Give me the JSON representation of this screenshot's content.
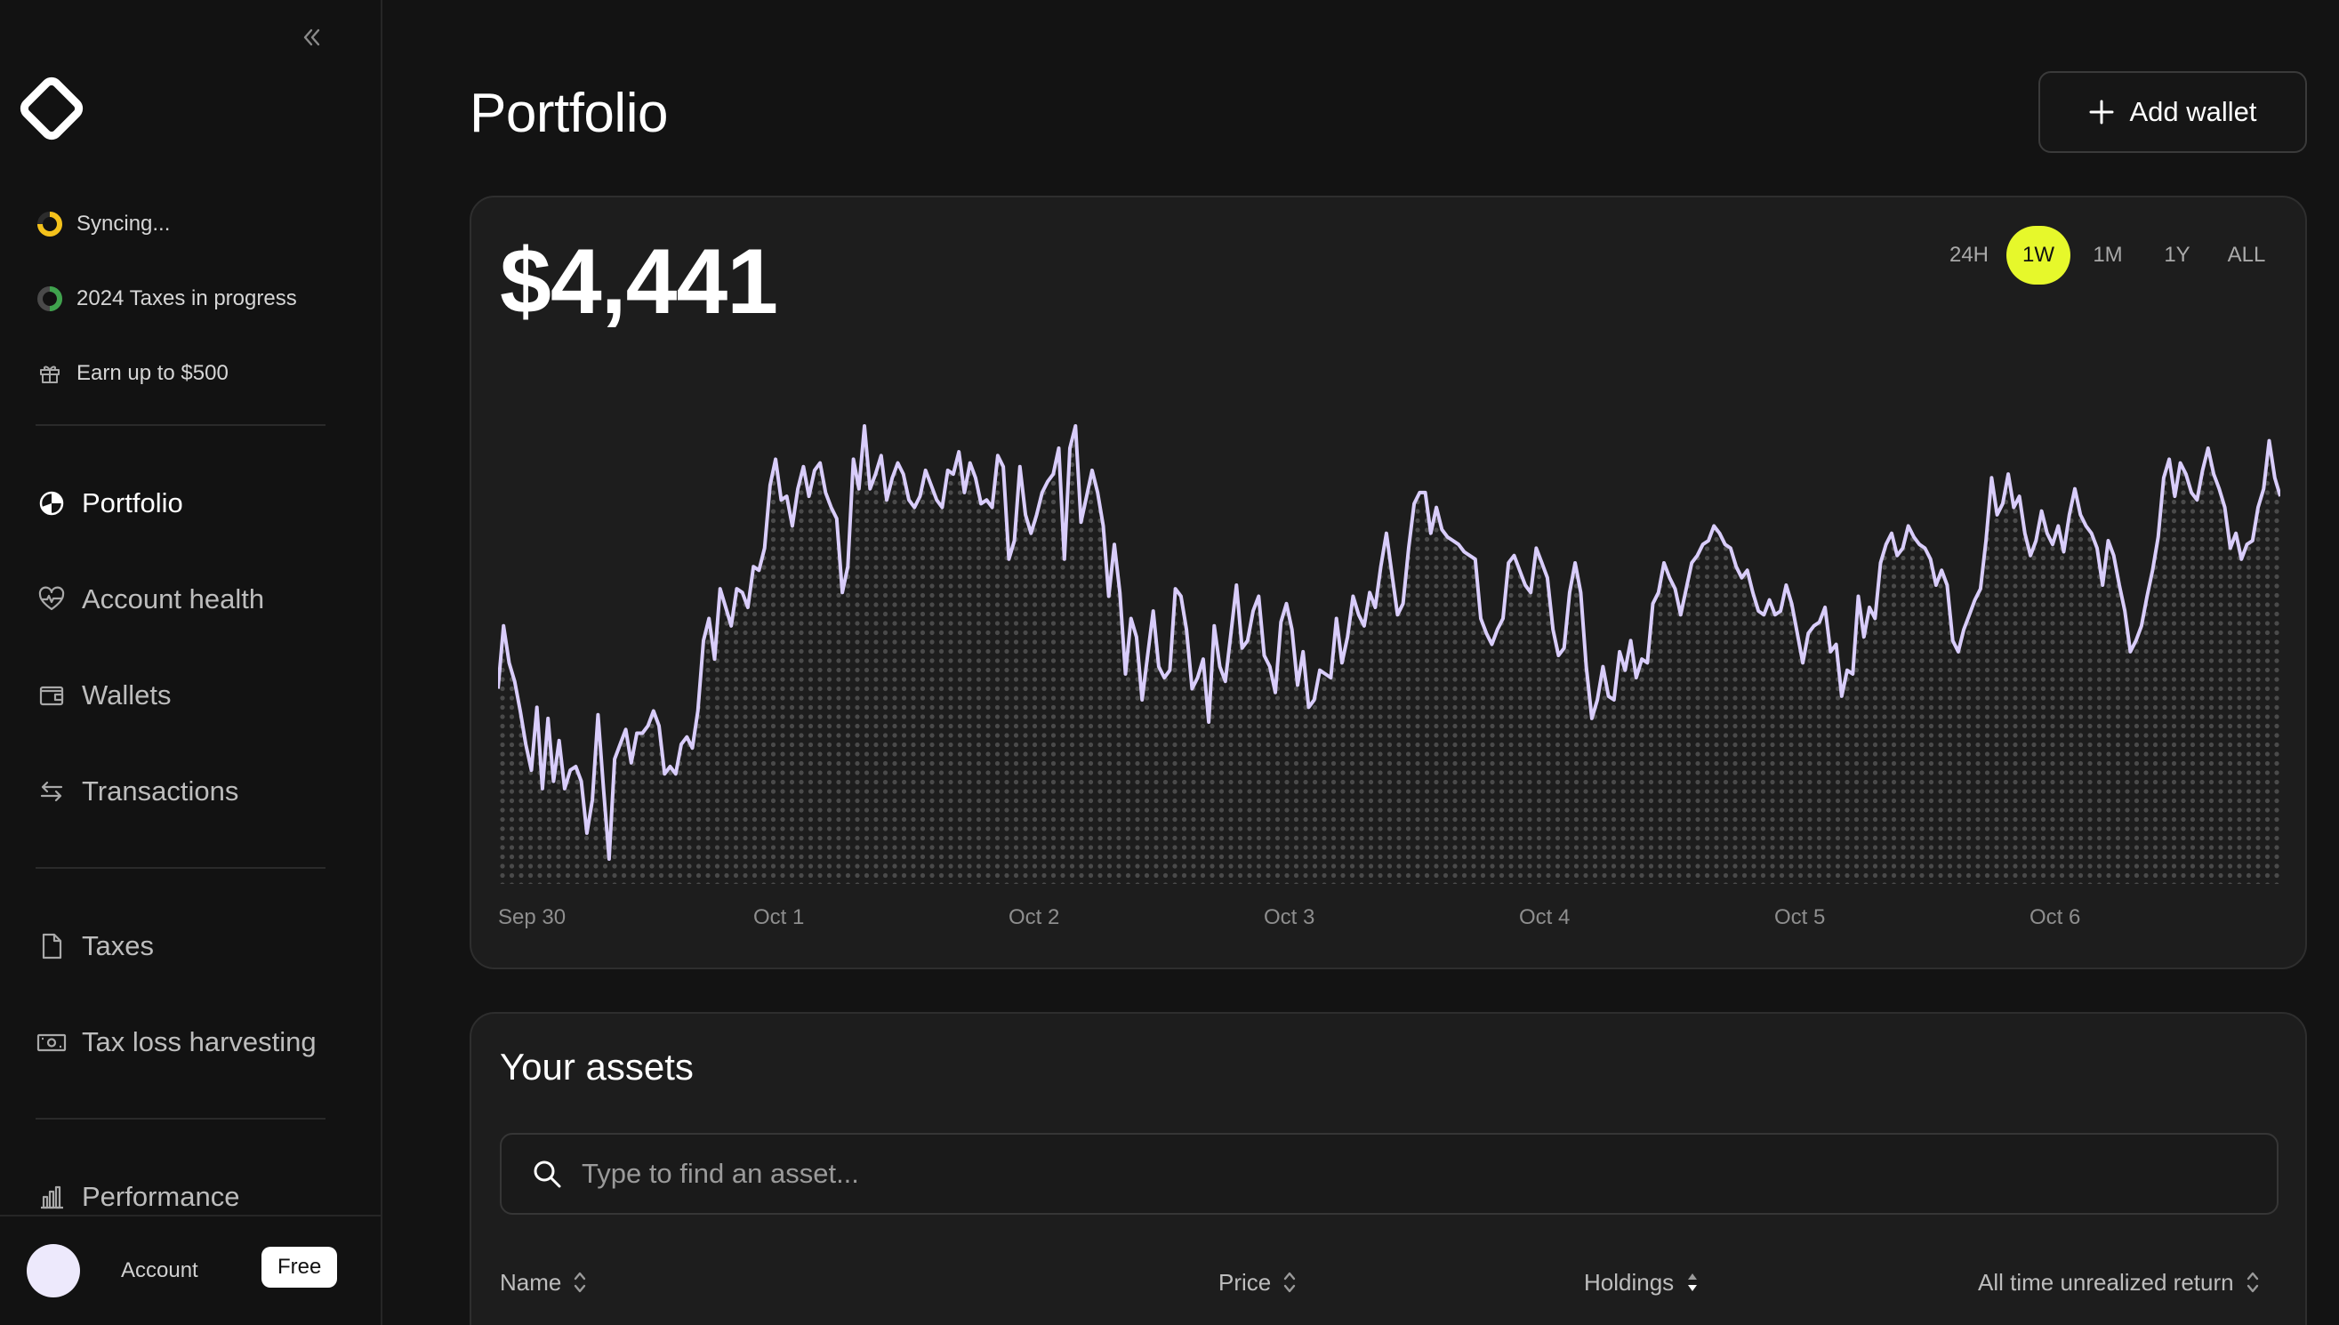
{
  "sidebar": {
    "status": [
      {
        "label": "Syncing...",
        "icon": "syncing-ring-icon"
      },
      {
        "label": "2024 Taxes in progress",
        "icon": "progress-ring-icon"
      },
      {
        "label": "Earn up to $500",
        "icon": "gift-icon"
      }
    ],
    "nav": [
      {
        "label": "Portfolio",
        "icon": "pie-chart-icon",
        "active": true
      },
      {
        "label": "Account health",
        "icon": "heart-pulse-icon"
      },
      {
        "label": "Wallets",
        "icon": "wallet-icon"
      },
      {
        "label": "Transactions",
        "icon": "arrows-exchange-icon"
      },
      {
        "label": "Taxes",
        "icon": "document-icon"
      },
      {
        "label": "Tax loss harvesting",
        "icon": "banknote-icon"
      },
      {
        "label": "Performance",
        "icon": "bar-chart-icon"
      }
    ],
    "account": {
      "label": "Account",
      "plan": "Free"
    }
  },
  "header": {
    "title": "Portfolio",
    "add_wallet_label": "Add wallet"
  },
  "portfolio": {
    "total_value": "$4,441",
    "ranges": [
      "24H",
      "1W",
      "1M",
      "1Y",
      "ALL"
    ],
    "active_range": "1W"
  },
  "chart_data": {
    "type": "area",
    "title": "",
    "xlabel": "",
    "ylabel": "",
    "x_ticks": [
      "Sep 30",
      "Oct 1",
      "Oct 2",
      "Oct 3",
      "Oct 4",
      "Oct 5",
      "Oct 6"
    ],
    "grid": false,
    "line_color": "#d9cdfb",
    "fill_style": "dotted",
    "y_relative": [
      0.58,
      0.75,
      0.65,
      0.6,
      0.52,
      0.43,
      0.36,
      0.53,
      0.31,
      0.5,
      0.33,
      0.44,
      0.31,
      0.36,
      0.37,
      0.33,
      0.19,
      0.28,
      0.51,
      0.31,
      0.12,
      0.39,
      0.43,
      0.47,
      0.38,
      0.46,
      0.46,
      0.48,
      0.52,
      0.48,
      0.35,
      0.37,
      0.35,
      0.43,
      0.45,
      0.42,
      0.52,
      0.71,
      0.77,
      0.66,
      0.85,
      0.8,
      0.75,
      0.85,
      0.84,
      0.8,
      0.91,
      0.9,
      0.96,
      1.13,
      1.2,
      1.09,
      1.1,
      1.02,
      1.12,
      1.18,
      1.1,
      1.17,
      1.19,
      1.11,
      1.07,
      1.04,
      0.84,
      0.91,
      1.2,
      1.12,
      1.29,
      1.12,
      1.16,
      1.21,
      1.09,
      1.15,
      1.19,
      1.16,
      1.09,
      1.07,
      1.1,
      1.17,
      1.13,
      1.09,
      1.07,
      1.17,
      1.16,
      1.22,
      1.11,
      1.19,
      1.15,
      1.08,
      1.09,
      1.07,
      1.21,
      1.18,
      0.93,
      0.98,
      1.18,
      1.05,
      1.0,
      1.05,
      1.11,
      1.14,
      1.16,
      1.23,
      0.93,
      1.23,
      1.29,
      1.03,
      1.1,
      1.17,
      1.11,
      1.02,
      0.83,
      0.97,
      0.84,
      0.62,
      0.77,
      0.72,
      0.55,
      0.67,
      0.79,
      0.64,
      0.61,
      0.63,
      0.85,
      0.83,
      0.74,
      0.58,
      0.61,
      0.66,
      0.49,
      0.75,
      0.64,
      0.6,
      0.73,
      0.86,
      0.69,
      0.71,
      0.79,
      0.83,
      0.67,
      0.64,
      0.57,
      0.76,
      0.81,
      0.74,
      0.59,
      0.68,
      0.53,
      0.55,
      0.63,
      0.62,
      0.61,
      0.77,
      0.65,
      0.72,
      0.83,
      0.78,
      0.75,
      0.84,
      0.8,
      0.91,
      1.0,
      0.89,
      0.78,
      0.81,
      0.96,
      1.08,
      1.11,
      1.11,
      1.0,
      1.07,
      1.01,
      0.99,
      0.98,
      0.97,
      0.95,
      0.94,
      0.93,
      0.77,
      0.73,
      0.7,
      0.74,
      0.77,
      0.92,
      0.94,
      0.9,
      0.86,
      0.84,
      0.96,
      0.92,
      0.88,
      0.74,
      0.67,
      0.69,
      0.84,
      0.92,
      0.84,
      0.64,
      0.5,
      0.55,
      0.64,
      0.56,
      0.55,
      0.68,
      0.63,
      0.71,
      0.61,
      0.66,
      0.65,
      0.81,
      0.84,
      0.92,
      0.88,
      0.85,
      0.78,
      0.85,
      0.92,
      0.94,
      0.97,
      0.98,
      1.02,
      1.0,
      0.97,
      0.96,
      0.91,
      0.88,
      0.9,
      0.84,
      0.79,
      0.78,
      0.82,
      0.78,
      0.79,
      0.86,
      0.81,
      0.73,
      0.65,
      0.73,
      0.75,
      0.76,
      0.8,
      0.68,
      0.7,
      0.56,
      0.63,
      0.62,
      0.83,
      0.72,
      0.8,
      0.77,
      0.92,
      0.97,
      1.0,
      0.94,
      0.96,
      1.02,
      0.99,
      0.97,
      0.96,
      0.93,
      0.86,
      0.9,
      0.86,
      0.71,
      0.68,
      0.74,
      0.78,
      0.82,
      0.85,
      0.98,
      1.15,
      1.05,
      1.08,
      1.16,
      1.07,
      1.1,
      1.0,
      0.94,
      0.98,
      1.06,
      1.0,
      0.97,
      1.02,
      0.95,
      1.05,
      1.12,
      1.05,
      1.02,
      1.0,
      0.96,
      0.86,
      0.98,
      0.94,
      0.86,
      0.79,
      0.68,
      0.71,
      0.75,
      0.83,
      0.9,
      0.99,
      1.15,
      1.2,
      1.1,
      1.19,
      1.16,
      1.11,
      1.09,
      1.17,
      1.23,
      1.16,
      1.12,
      1.07,
      0.96,
      1.0,
      0.93,
      0.97,
      0.98,
      1.07,
      1.12,
      1.25,
      1.15,
      1.1
    ]
  },
  "assets": {
    "title": "Your assets",
    "search_placeholder": "Type to find an asset...",
    "columns": [
      {
        "label": "Name",
        "sort": "none"
      },
      {
        "label": "Price",
        "sort": "none"
      },
      {
        "label": "Holdings",
        "sort": "desc"
      },
      {
        "label": "All time unrealized return",
        "sort": "none"
      }
    ]
  },
  "colors": {
    "accent": "#e6f82b",
    "line": "#d9cdfb",
    "background": "#131313",
    "card": "#1d1d1d"
  }
}
